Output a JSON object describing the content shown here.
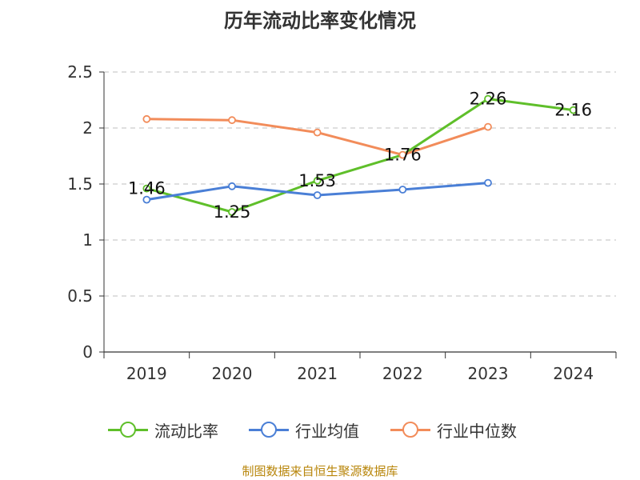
{
  "chart_data": {
    "type": "line",
    "title": "历年流动比率变化情况",
    "categories": [
      "2019",
      "2020",
      "2021",
      "2022",
      "2023",
      "2024"
    ],
    "ylim": [
      0,
      2.5
    ],
    "yticks": [
      0,
      0.5,
      1,
      1.5,
      2,
      2.5
    ],
    "ytick_labels": [
      "0",
      "0.5",
      "1",
      "1.5",
      "2",
      "2.5"
    ],
    "grid": true,
    "legend_position": "bottom",
    "series": [
      {
        "name": "流动比率",
        "color": "#5fbf2a",
        "values": [
          1.46,
          1.25,
          1.53,
          1.76,
          2.26,
          2.16
        ],
        "labels": [
          "1.46",
          "1.25",
          "1.53",
          "1.76",
          "2.26",
          "2.16"
        ]
      },
      {
        "name": "行业均值",
        "color": "#4a7fd6",
        "values": [
          1.36,
          1.48,
          1.4,
          1.45,
          1.51,
          null
        ]
      },
      {
        "name": "行业中位数",
        "color": "#f28c5a",
        "values": [
          2.08,
          2.07,
          1.96,
          1.76,
          2.01,
          null
        ]
      }
    ]
  },
  "footer": {
    "source": "制图数据来自恒生聚源数据库"
  }
}
